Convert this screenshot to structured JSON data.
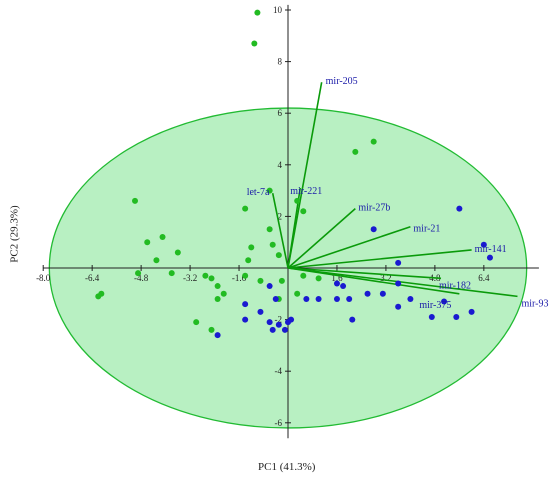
{
  "chart_data": {
    "type": "scatter",
    "subtype": "pca-biplot",
    "title": "",
    "xlabel": "PC1 (41.3%)",
    "ylabel": "PC2 (29.3%)",
    "xlim": [
      -8.0,
      8.2
    ],
    "ylim": [
      -6.6,
      10.2
    ],
    "x_ticks": [
      "-8.0",
      "-6.4",
      "-4.8",
      "-3.2",
      "-1.6",
      "1.6",
      "3.2",
      "4.8",
      "6.4"
    ],
    "x_tick_values": [
      -8.0,
      -6.4,
      -4.8,
      -3.2,
      -1.6,
      1.6,
      3.2,
      4.8,
      6.4
    ],
    "y_ticks": [
      "10",
      "8",
      "6",
      "4",
      "2",
      "-2",
      "-4",
      "-6"
    ],
    "y_tick_values": [
      10,
      8,
      6,
      4,
      2,
      -2,
      -4,
      -6
    ],
    "grid": false,
    "confidence_ellipse": {
      "center": [
        0,
        0
      ],
      "radius_x": 7.8,
      "radius_y": 6.2,
      "fill": "#b8f0c2",
      "stroke": "#22bb33"
    },
    "colors": {
      "group1": "#22bb22",
      "group2": "#1a1ad0",
      "loading": "#0a9a0a",
      "loading_label": "#1a1aa8"
    },
    "series": [
      {
        "group": "green",
        "color": "#22bb22",
        "points": [
          [
            -1.0,
            9.9
          ],
          [
            -1.1,
            8.7
          ],
          [
            2.8,
            4.9
          ],
          [
            2.2,
            4.5
          ],
          [
            -5.0,
            2.6
          ],
          [
            -4.6,
            1.0
          ],
          [
            -4.1,
            1.2
          ],
          [
            -3.6,
            0.6
          ],
          [
            -4.3,
            0.3
          ],
          [
            -3.8,
            -0.2
          ],
          [
            -6.1,
            -1.0
          ],
          [
            -6.2,
            -1.1
          ],
          [
            -4.9,
            -0.2
          ],
          [
            -1.4,
            2.3
          ],
          [
            -1.2,
            0.8
          ],
          [
            -1.3,
            0.3
          ],
          [
            -2.5,
            -0.4
          ],
          [
            -2.3,
            -0.7
          ],
          [
            -1.4,
            -0.3
          ],
          [
            -0.9,
            -0.5
          ],
          [
            -2.1,
            -1.0
          ],
          [
            -2.3,
            -1.2
          ],
          [
            -3.0,
            -2.1
          ],
          [
            -2.5,
            -2.4
          ],
          [
            -0.6,
            1.5
          ],
          [
            -0.5,
            0.9
          ],
          [
            -0.3,
            0.5
          ],
          [
            0.5,
            2.2
          ],
          [
            -0.6,
            3.0
          ],
          [
            0.3,
            2.6
          ],
          [
            -0.2,
            -0.5
          ],
          [
            0.5,
            -0.3
          ],
          [
            0.3,
            -1.0
          ],
          [
            1.0,
            -0.4
          ],
          [
            -2.7,
            -0.3
          ],
          [
            -0.3,
            -1.2
          ]
        ]
      },
      {
        "group": "blue",
        "color": "#1a1ad0",
        "points": [
          [
            5.6,
            2.3
          ],
          [
            6.4,
            0.9
          ],
          [
            6.6,
            0.4
          ],
          [
            3.6,
            0.2
          ],
          [
            2.8,
            1.5
          ],
          [
            -0.6,
            -0.7
          ],
          [
            -0.4,
            -1.2
          ],
          [
            -1.4,
            -1.4
          ],
          [
            -1.4,
            -2.0
          ],
          [
            -2.3,
            -2.6
          ],
          [
            -0.9,
            -1.7
          ],
          [
            -0.6,
            -2.1
          ],
          [
            -0.5,
            -2.4
          ],
          [
            -0.3,
            -2.2
          ],
          [
            0.0,
            -2.1
          ],
          [
            -0.1,
            -2.4
          ],
          [
            0.1,
            -2.0
          ],
          [
            0.6,
            -1.2
          ],
          [
            1.0,
            -1.2
          ],
          [
            1.6,
            -1.2
          ],
          [
            2.0,
            -1.2
          ],
          [
            1.8,
            -0.7
          ],
          [
            2.6,
            -1.0
          ],
          [
            3.1,
            -1.0
          ],
          [
            3.6,
            -0.6
          ],
          [
            4.0,
            -1.2
          ],
          [
            2.1,
            -2.0
          ],
          [
            3.6,
            -1.5
          ],
          [
            4.7,
            -1.9
          ],
          [
            5.1,
            -1.3
          ],
          [
            5.5,
            -1.9
          ],
          [
            6.0,
            -1.7
          ],
          [
            1.6,
            -0.6
          ]
        ]
      }
    ],
    "loadings": [
      {
        "name": "mir-205",
        "x": 1.1,
        "y": 7.2
      },
      {
        "name": "mir-221",
        "x": 0.4,
        "y": 3.1
      },
      {
        "name": "let-7a",
        "x": -0.5,
        "y": 2.9
      },
      {
        "name": "mir-27b",
        "x": 2.2,
        "y": 2.3
      },
      {
        "name": "mir-21",
        "x": 4.0,
        "y": 1.6
      },
      {
        "name": "mir-141",
        "x": 6.0,
        "y": 0.7
      },
      {
        "name": "mir-182",
        "x": 5.0,
        "y": -0.4
      },
      {
        "name": "mir-375",
        "x": 5.6,
        "y": -1.0
      },
      {
        "name": "mir-93",
        "x": 7.5,
        "y": -1.1
      }
    ]
  }
}
